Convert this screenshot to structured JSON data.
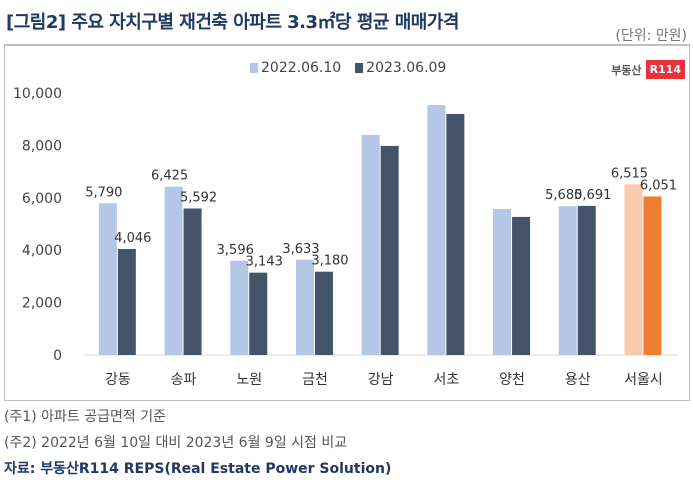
{
  "title": "[그림2] 주요 자치구별 재건축 아파트 3.3㎡당 평균 매매가격",
  "unit": "(단위: 만원)",
  "logo": {
    "text": "부동산",
    "badge": "R114"
  },
  "notes": [
    "(주1) 아파트 공급면적 기준",
    "(주2) 2022년 6월 10일 대비 2023년 6월 9일 시점 비교"
  ],
  "source": "자료: 부동산R114 REPS(Real Estate Power Solution)",
  "chart_data": {
    "type": "bar",
    "categories": [
      "강동",
      "송파",
      "노원",
      "금천",
      "강남",
      "서초",
      "양천",
      "용산",
      "서울시"
    ],
    "series": [
      {
        "name": "2022.06.10",
        "values": [
          5790,
          6425,
          3596,
          3633,
          8400,
          9540,
          5570,
          5680,
          6515
        ],
        "labeled": [
          true,
          true,
          true,
          true,
          false,
          false,
          false,
          true,
          true
        ],
        "color": "#b4c7e7",
        "highlight_color": "#f8cbad"
      },
      {
        "name": "2023.06.09",
        "values": [
          4046,
          5592,
          3143,
          3180,
          7980,
          9200,
          5270,
          5691,
          6051
        ],
        "labeled": [
          true,
          true,
          true,
          true,
          false,
          false,
          false,
          true,
          true
        ],
        "color": "#44546a",
        "highlight_color": "#ed7d31"
      }
    ],
    "highlight_category": "서울시",
    "ylim": [
      0,
      10000
    ],
    "yticks": [
      0,
      2000,
      4000,
      6000,
      8000,
      10000
    ],
    "legend": "top-center",
    "grid": false
  }
}
